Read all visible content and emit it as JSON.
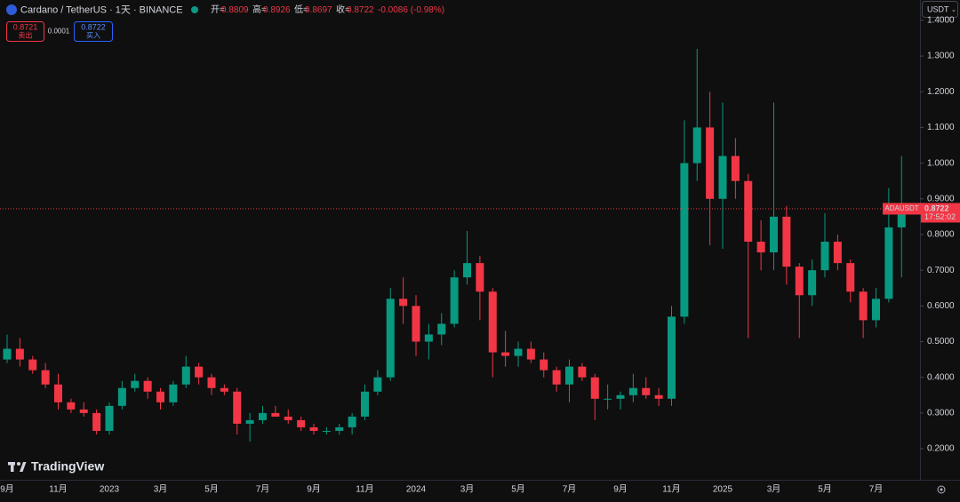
{
  "header": {
    "symbol": "Cardano / TetherUS · 1天 · BINANCE",
    "open_label": "开=",
    "open": "0.8809",
    "high_label": "高=",
    "high": "0.8926",
    "low_label": "低=",
    "low": "0.8697",
    "close_label": "收=",
    "close": "0.8722",
    "change": "-0.0086 (-0.98%)"
  },
  "trade": {
    "sell_price": "0.8721",
    "sell_label": "卖出",
    "spread": "0.0001",
    "buy_price": "0.8722",
    "buy_label": "买入"
  },
  "currency": "USDT",
  "watermark": "TradingView",
  "chart_data": {
    "type": "candlestick",
    "categories": [
      "9月",
      null,
      null,
      null,
      "11月",
      null,
      null,
      null,
      "2023",
      null,
      null,
      null,
      "3月",
      null,
      null,
      null,
      "5月",
      null,
      null,
      null,
      "7月",
      null,
      null,
      null,
      "9月",
      null,
      null,
      null,
      "11月",
      null,
      null,
      null,
      "2024",
      null,
      null,
      null,
      "3月",
      null,
      null,
      null,
      "5月",
      null,
      null,
      null,
      "7月",
      null,
      null,
      null,
      "9月",
      null,
      null,
      null,
      "11月",
      null,
      null,
      null,
      "2025",
      null,
      null,
      null,
      "3月",
      null,
      null,
      null,
      "5月",
      null,
      null,
      null,
      "7月",
      null,
      null
    ],
    "open": [
      0.45,
      0.48,
      0.45,
      0.42,
      0.38,
      0.33,
      0.31,
      0.3,
      0.25,
      0.32,
      0.37,
      0.39,
      0.36,
      0.33,
      0.38,
      0.43,
      0.4,
      0.37,
      0.36,
      0.27,
      0.28,
      0.3,
      0.29,
      0.28,
      0.26,
      0.25,
      0.25,
      0.26,
      0.29,
      0.36,
      0.4,
      0.62,
      0.6,
      0.5,
      0.52,
      0.55,
      0.68,
      0.72,
      0.64,
      0.47,
      0.46,
      0.48,
      0.45,
      0.42,
      0.38,
      0.43,
      0.4,
      0.34,
      0.34,
      0.35,
      0.37,
      0.35,
      0.34,
      0.57,
      1.0,
      1.1,
      0.9,
      1.02,
      0.95,
      0.78,
      0.75,
      0.85,
      0.71,
      0.63,
      0.7,
      0.78,
      0.72,
      0.64,
      0.56,
      0.62,
      0.82
    ],
    "high": [
      0.52,
      0.51,
      0.46,
      0.44,
      0.41,
      0.34,
      0.33,
      0.31,
      0.33,
      0.39,
      0.41,
      0.4,
      0.37,
      0.39,
      0.46,
      0.44,
      0.41,
      0.38,
      0.37,
      0.3,
      0.32,
      0.32,
      0.31,
      0.29,
      0.27,
      0.26,
      0.27,
      0.3,
      0.38,
      0.42,
      0.65,
      0.68,
      0.63,
      0.55,
      0.58,
      0.7,
      0.81,
      0.74,
      0.65,
      0.53,
      0.5,
      0.5,
      0.47,
      0.43,
      0.45,
      0.44,
      0.41,
      0.38,
      0.36,
      0.41,
      0.4,
      0.37,
      0.6,
      1.12,
      1.32,
      1.2,
      1.17,
      1.07,
      0.97,
      0.84,
      1.17,
      0.88,
      0.72,
      0.73,
      0.86,
      0.8,
      0.73,
      0.65,
      0.65,
      0.93,
      1.02
    ],
    "low": [
      0.44,
      0.43,
      0.41,
      0.37,
      0.31,
      0.3,
      0.29,
      0.24,
      0.24,
      0.31,
      0.36,
      0.34,
      0.31,
      0.32,
      0.37,
      0.38,
      0.35,
      0.35,
      0.24,
      0.22,
      0.27,
      0.29,
      0.27,
      0.25,
      0.24,
      0.24,
      0.24,
      0.24,
      0.28,
      0.35,
      0.39,
      0.55,
      0.46,
      0.45,
      0.49,
      0.54,
      0.66,
      0.56,
      0.4,
      0.43,
      0.43,
      0.44,
      0.4,
      0.36,
      0.33,
      0.39,
      0.28,
      0.31,
      0.31,
      0.33,
      0.34,
      0.32,
      0.32,
      0.55,
      0.95,
      0.77,
      0.76,
      0.9,
      0.51,
      0.7,
      0.7,
      0.66,
      0.51,
      0.6,
      0.68,
      0.7,
      0.61,
      0.51,
      0.54,
      0.61,
      0.68
    ],
    "close": [
      0.48,
      0.45,
      0.42,
      0.38,
      0.33,
      0.31,
      0.3,
      0.25,
      0.32,
      0.37,
      0.39,
      0.36,
      0.33,
      0.38,
      0.43,
      0.4,
      0.37,
      0.36,
      0.27,
      0.28,
      0.3,
      0.29,
      0.28,
      0.26,
      0.25,
      0.25,
      0.26,
      0.29,
      0.36,
      0.4,
      0.62,
      0.6,
      0.5,
      0.52,
      0.55,
      0.68,
      0.72,
      0.64,
      0.47,
      0.46,
      0.48,
      0.45,
      0.42,
      0.38,
      0.43,
      0.4,
      0.34,
      0.34,
      0.35,
      0.37,
      0.35,
      0.34,
      0.57,
      1.0,
      1.1,
      0.9,
      1.02,
      0.95,
      0.78,
      0.75,
      0.85,
      0.71,
      0.63,
      0.7,
      0.78,
      0.72,
      0.64,
      0.56,
      0.62,
      0.82,
      0.8722
    ],
    "up_color": "#089981",
    "down_color": "#f23645",
    "ylim": [
      0.113,
      1.457
    ],
    "yticks": [
      {
        "value": 0.2,
        "label": "0.2000"
      },
      {
        "value": 0.3,
        "label": "0.3000"
      },
      {
        "value": 0.4,
        "label": "0.4000"
      },
      {
        "value": 0.5,
        "label": "0.5000"
      },
      {
        "value": 0.6,
        "label": "0.6000"
      },
      {
        "value": 0.7,
        "label": "0.7000"
      },
      {
        "value": 0.8,
        "label": "0.8000"
      },
      {
        "value": 0.9,
        "label": "0.9000"
      },
      {
        "value": 1.0,
        "label": "1.0000"
      },
      {
        "value": 1.1,
        "label": "1.1000"
      },
      {
        "value": 1.2,
        "label": "1.2000"
      },
      {
        "value": 1.3,
        "label": "1.3000"
      },
      {
        "value": 1.4,
        "label": "1.4000"
      }
    ],
    "last_price": 0.8722,
    "ticker": "ADAUSDT",
    "countdown": "17:52:02"
  }
}
